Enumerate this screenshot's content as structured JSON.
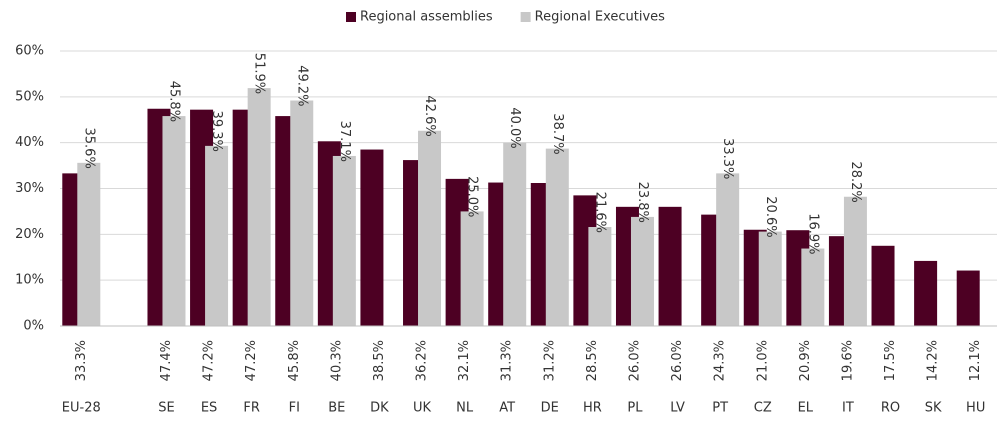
{
  "chart_data": {
    "type": "bar",
    "categories": [
      "EU-28",
      null,
      "SE",
      "ES",
      "FR",
      "FI",
      "BE",
      "DK",
      "UK",
      "NL",
      "AT",
      "DE",
      "HR",
      "PL",
      "LV",
      "PT",
      "CZ",
      "EL",
      "IT",
      "RO",
      "SK",
      "HU"
    ],
    "series": [
      {
        "name": "Regional assemblies",
        "color": "#4d0023",
        "values": [
          33.3,
          null,
          47.4,
          47.2,
          47.2,
          45.8,
          40.3,
          38.5,
          36.2,
          32.1,
          31.3,
          31.2,
          28.5,
          26.0,
          26.0,
          24.3,
          21.0,
          20.9,
          19.6,
          17.5,
          14.2,
          12.1
        ],
        "value_labels": [
          "33.3%",
          null,
          "47.4%",
          "47.2%",
          "47.2%",
          "45.8%",
          "40.3%",
          "38.5%",
          "36.2%",
          "32.1%",
          "31.3%",
          "31.2%",
          "28.5%",
          "26.0%",
          "26.0%",
          "24.3%",
          "21.0%",
          "20.9%",
          "19.6%",
          "17.5%",
          "14.2%",
          "12.1%"
        ]
      },
      {
        "name": "Regional Executives",
        "color": "#c8c8c8",
        "values": [
          35.6,
          null,
          45.8,
          39.3,
          51.9,
          49.2,
          37.1,
          null,
          42.6,
          25.0,
          40.0,
          38.7,
          21.6,
          23.8,
          null,
          33.3,
          20.6,
          16.9,
          28.2,
          null,
          null,
          null
        ],
        "value_labels": [
          "35.6%",
          null,
          "45.8%",
          "39.3%",
          "51.9%",
          "49.2%",
          "37.1%",
          null,
          "42.6%",
          "25.0%",
          "40.0%",
          "38.7%",
          "21.6%",
          "23.8%",
          null,
          "33.3%",
          "20.6%",
          "16.9%",
          "28.2%",
          null,
          null,
          null
        ]
      }
    ],
    "ylim": [
      0,
      60
    ],
    "yticks": [
      {
        "value": 0,
        "label": "0%"
      },
      {
        "value": 10,
        "label": "10%"
      },
      {
        "value": 20,
        "label": "20%"
      },
      {
        "value": 30,
        "label": "30%"
      },
      {
        "value": 40,
        "label": "40%"
      },
      {
        "value": 50,
        "label": "50%"
      },
      {
        "value": 60,
        "label": "60%"
      }
    ],
    "grid": true,
    "legend": "top"
  }
}
